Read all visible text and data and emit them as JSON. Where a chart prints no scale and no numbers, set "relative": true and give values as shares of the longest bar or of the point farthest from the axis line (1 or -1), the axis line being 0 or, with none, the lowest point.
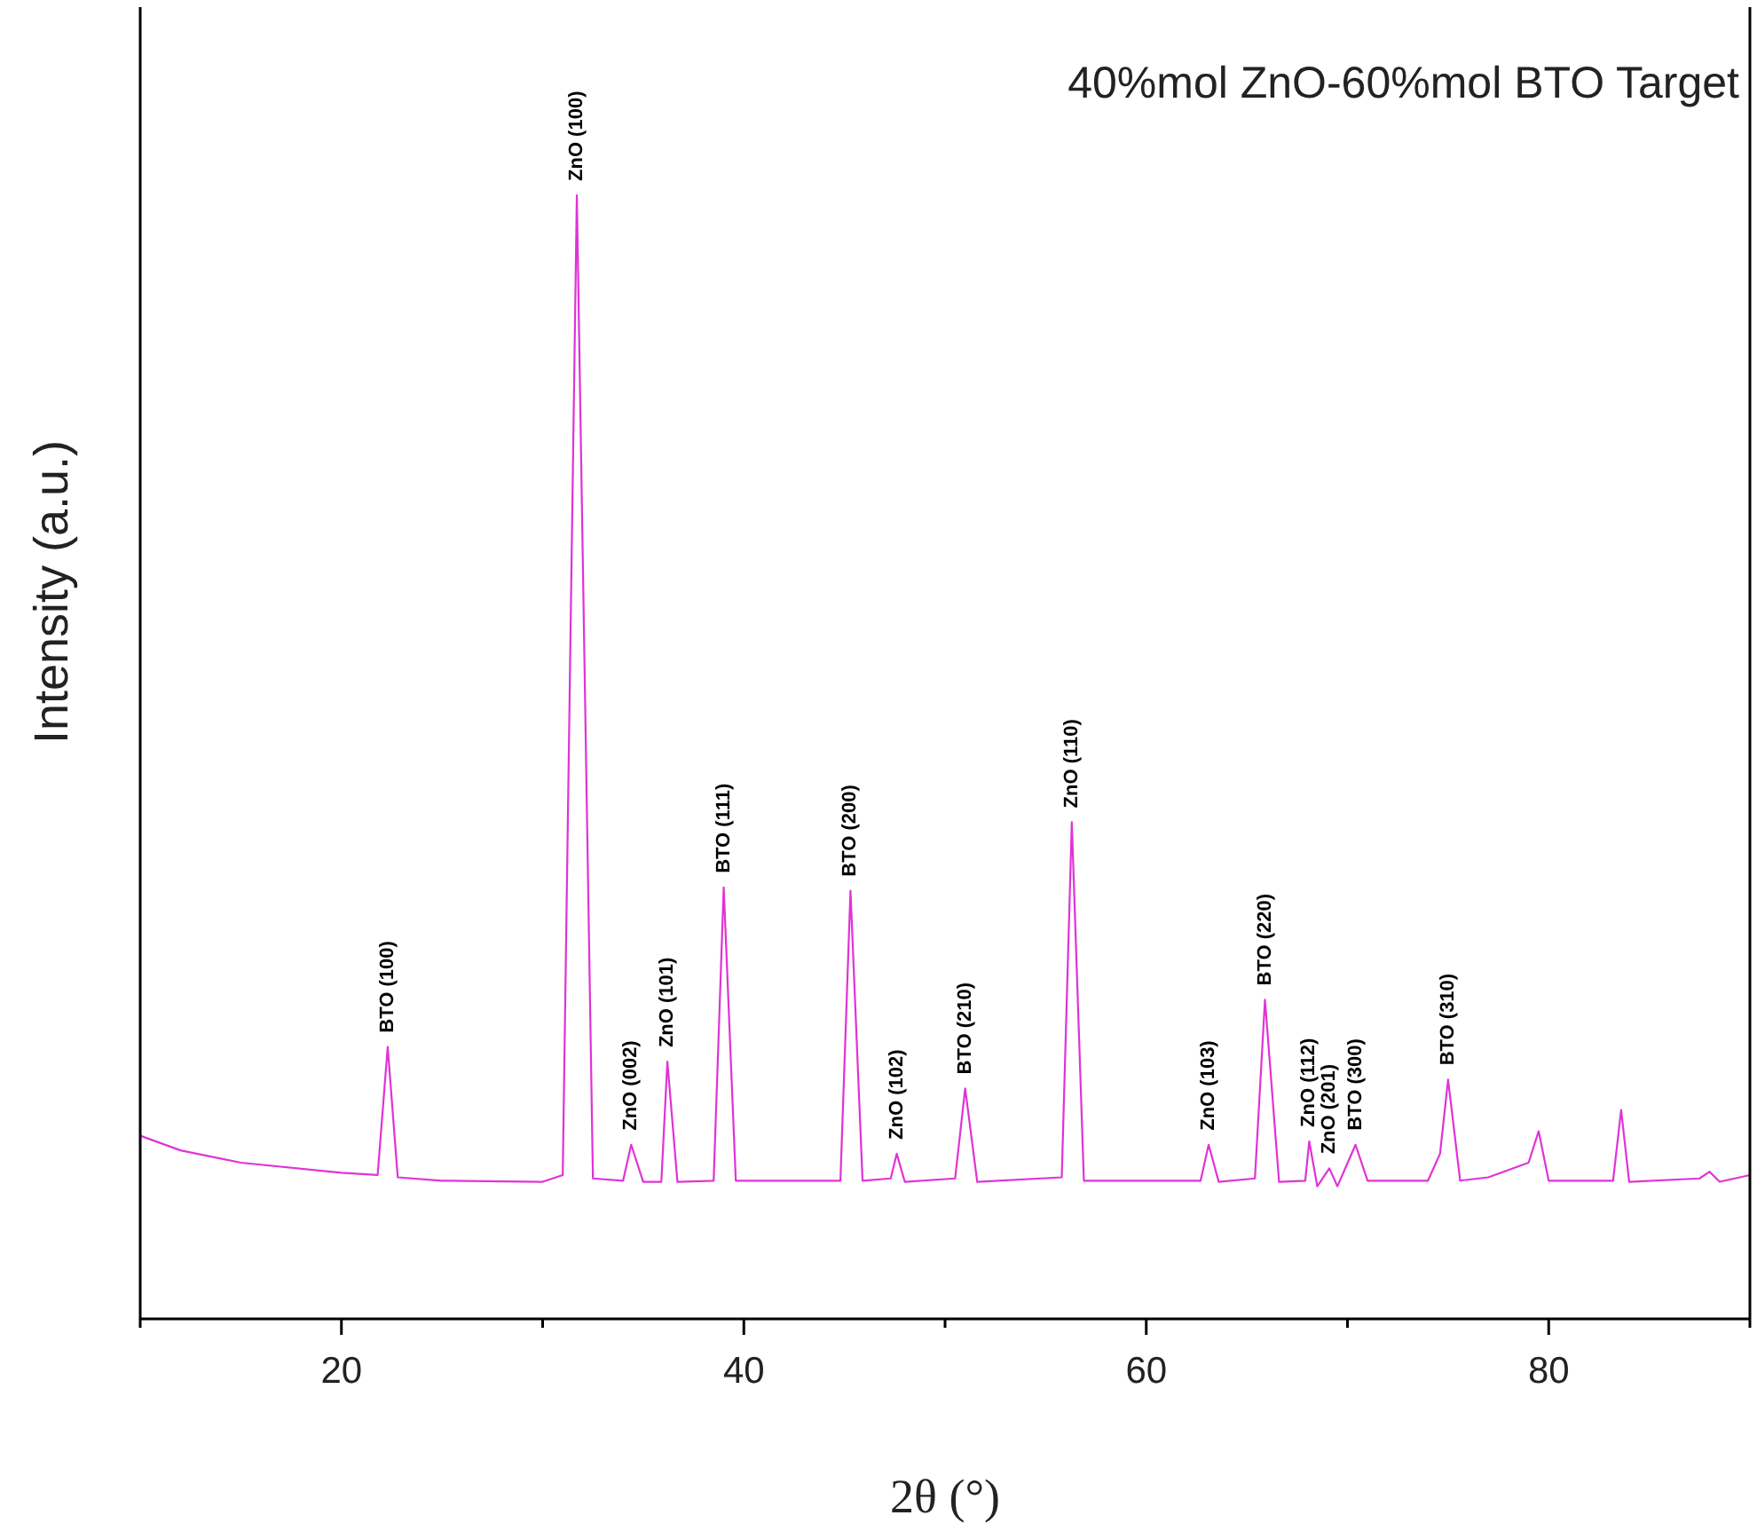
{
  "chart_data": {
    "type": "line",
    "title": "40%mol ZnO-60%mol BTO Target",
    "xlabel": "2θ (°)",
    "ylabel": "Intensity (a.u.)",
    "relative": true,
    "tick_labels": "x",
    "xlim": [
      10,
      90
    ],
    "xticks": [
      {
        "value": 10,
        "label": null
      },
      20,
      {
        "value": 30,
        "label": null
      },
      40,
      {
        "value": 50,
        "label": null
      },
      60,
      {
        "value": 70,
        "label": null
      },
      80,
      {
        "value": 90,
        "label": null
      }
    ],
    "series": [
      {
        "color": "#e033d6",
        "x": [
          10,
          12,
          15,
          20,
          21.8,
          22.3,
          22.8,
          25,
          30,
          31,
          31.7,
          32.5,
          34,
          34.4,
          35,
          35.9,
          36.2,
          36.7,
          38.5,
          39,
          39.6,
          44.8,
          45.3,
          45.9,
          47.3,
          47.6,
          48,
          50.5,
          51,
          51.6,
          55.8,
          56.3,
          56.9,
          62.7,
          63.1,
          63.6,
          65.4,
          65.9,
          66.6,
          67.9,
          68.1,
          68.5,
          69.1,
          69.5,
          70.4,
          71,
          74,
          74.6,
          75,
          75.6,
          77,
          79,
          79.5,
          80,
          83.2,
          83.6,
          84,
          87.5,
          88,
          88.5,
          90
        ],
        "values": [
          0.163,
          0.15,
          0.139,
          0.13,
          0.128,
          0.242,
          0.126,
          0.123,
          0.122,
          0.128,
          1,
          0.125,
          0.123,
          0.155,
          0.122,
          0.122,
          0.229,
          0.122,
          0.123,
          0.384,
          0.123,
          0.123,
          0.381,
          0.123,
          0.125,
          0.147,
          0.122,
          0.125,
          0.205,
          0.122,
          0.126,
          0.442,
          0.123,
          0.123,
          0.155,
          0.122,
          0.125,
          0.284,
          0.122,
          0.123,
          0.158,
          0.118,
          0.134,
          0.118,
          0.155,
          0.123,
          0.123,
          0.147,
          0.213,
          0.123,
          0.126,
          0.139,
          0.167,
          0.123,
          0.123,
          0.186,
          0.122,
          0.125,
          0.131,
          0.122,
          0.128
        ]
      }
    ],
    "annotations": [
      {
        "text": "BTO (100)",
        "x": 22.3,
        "y": 0.242
      },
      {
        "text": "ZnO (100)",
        "x": 31.7,
        "y": 1
      },
      {
        "text": "ZnO (002)",
        "x": 34.4,
        "y": 0.155
      },
      {
        "text": "ZnO (101)",
        "x": 36.2,
        "y": 0.229
      },
      {
        "text": "BTO (111)",
        "x": 39,
        "y": 0.384
      },
      {
        "text": "BTO (200)",
        "x": 45.3,
        "y": 0.381
      },
      {
        "text": "ZnO (102)",
        "x": 47.6,
        "y": 0.147
      },
      {
        "text": "BTO (210)",
        "x": 51,
        "y": 0.205
      },
      {
        "text": "ZnO (110)",
        "x": 56.3,
        "y": 0.442
      },
      {
        "text": "ZnO (103)",
        "x": 63.1,
        "y": 0.155
      },
      {
        "text": "BTO (220)",
        "x": 65.9,
        "y": 0.284
      },
      {
        "text": "ZnO (112)",
        "x": 68.1,
        "y": 0.158
      },
      {
        "text": "ZnO (201)",
        "x": 69.1,
        "y": 0.134
      },
      {
        "text": "BTO (300)",
        "x": 70.4,
        "y": 0.155
      },
      {
        "text": "BTO (310)",
        "x": 75,
        "y": 0.213
      }
    ]
  }
}
